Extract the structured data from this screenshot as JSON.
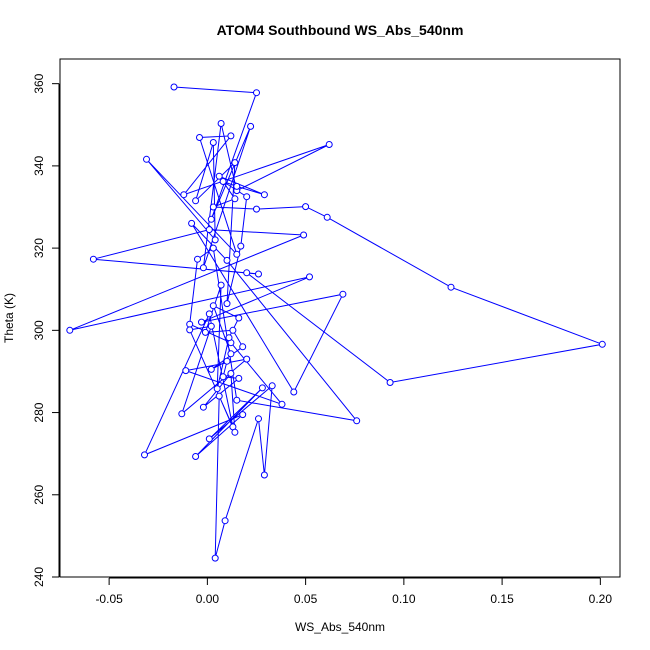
{
  "chart_data": {
    "type": "line",
    "title": "ATOM4 Southbound WS_Abs_540nm",
    "xlabel": "WS_Abs_540nm",
    "ylabel": "Theta (K)",
    "xlim": [
      -0.075,
      0.21
    ],
    "ylim": [
      240,
      366
    ],
    "x_ticks": [
      -0.05,
      0.0,
      0.05,
      0.1,
      0.15,
      0.2
    ],
    "x_tick_labels": [
      "-0.05",
      "0.00",
      "0.05",
      "0.10",
      "0.15",
      "0.20"
    ],
    "y_ticks": [
      240,
      260,
      280,
      300,
      320,
      340,
      360
    ],
    "y_tick_labels": [
      "240",
      "260",
      "280",
      "300",
      "320",
      "340",
      "360"
    ],
    "grid": false,
    "color": "#0000ff",
    "marker": "open-circle",
    "series": [
      {
        "points": [
          [
            -0.017,
            359.2
          ],
          [
            0.025,
            357.8
          ],
          [
            0.002,
            327.0
          ],
          [
            0.022,
            349.6
          ],
          [
            -0.002,
            315.2
          ],
          [
            0.007,
            350.3
          ],
          [
            0.015,
            334.0
          ],
          [
            0.062,
            345.2
          ],
          [
            -0.012,
            333.0
          ],
          [
            0.012,
            347.3
          ],
          [
            -0.004,
            346.9
          ],
          [
            0.015,
            318.5
          ],
          [
            -0.031,
            341.6
          ],
          [
            0.004,
            322.0
          ],
          [
            0.003,
            345.7
          ],
          [
            -0.006,
            331.5
          ],
          [
            0.014,
            340.8
          ],
          [
            0.01,
            306.5
          ],
          [
            0.017,
            320.5
          ],
          [
            0.02,
            332.5
          ],
          [
            0.008,
            336.2
          ],
          [
            0.015,
            335.0
          ],
          [
            0.029,
            333.0
          ],
          [
            0.006,
            337.5
          ],
          [
            0.014,
            332.0
          ],
          [
            0.003,
            330.0
          ],
          [
            0.025,
            329.5
          ],
          [
            0.05,
            330.1
          ],
          [
            0.061,
            327.5
          ],
          [
            0.124,
            310.5
          ],
          [
            0.201,
            296.6
          ],
          [
            0.093,
            287.3
          ],
          [
            0.02,
            314.0
          ],
          [
            0.026,
            313.7
          ],
          [
            -0.058,
            317.3
          ],
          [
            0.001,
            324.5
          ],
          [
            0.049,
            323.2
          ],
          [
            -0.07,
            300.0
          ],
          [
            0.052,
            313.0
          ],
          [
            -0.003,
            302.0
          ],
          [
            0.069,
            308.8
          ],
          [
            0.044,
            285.0
          ],
          [
            -0.008,
            326.0
          ],
          [
            0.01,
            317.0
          ],
          [
            0.076,
            278.0
          ],
          [
            0.015,
            283.0
          ],
          [
            0.003,
            320.0
          ],
          [
            -0.005,
            317.3
          ],
          [
            -0.009,
            301.5
          ],
          [
            0.012,
            297.0
          ],
          [
            0.038,
            282.0
          ],
          [
            -0.011,
            290.2
          ],
          [
            0.02,
            293.0
          ],
          [
            -0.013,
            279.7
          ],
          [
            0.002,
            301.0
          ],
          [
            -0.009,
            300.1
          ],
          [
            0.013,
            276.5
          ],
          [
            0.001,
            304.0
          ],
          [
            -0.032,
            269.7
          ],
          [
            0.018,
            279.5
          ],
          [
            -0.006,
            269.3
          ],
          [
            0.028,
            286.0
          ],
          [
            0.001,
            273.6
          ],
          [
            0.033,
            286.5
          ],
          [
            0.029,
            264.8
          ],
          [
            0.026,
            278.5
          ],
          [
            0.009,
            253.7
          ],
          [
            0.004,
            244.6
          ],
          [
            0.006,
            284.0
          ],
          [
            0.014,
            275.2
          ],
          [
            0.012,
            289.5
          ],
          [
            -0.002,
            281.3
          ],
          [
            0.016,
            288.3
          ],
          [
            0.008,
            288.7
          ],
          [
            0.01,
            292.5
          ],
          [
            0.002,
            290.5
          ],
          [
            0.018,
            296.0
          ],
          [
            0.013,
            300.0
          ],
          [
            -0.001,
            299.5
          ],
          [
            0.007,
            311.0
          ],
          [
            0.005,
            285.8
          ],
          [
            0.011,
            298.2
          ],
          [
            0.016,
            303.0
          ],
          [
            0.003,
            306.0
          ],
          [
            0.012,
            294.3
          ]
        ]
      }
    ]
  }
}
